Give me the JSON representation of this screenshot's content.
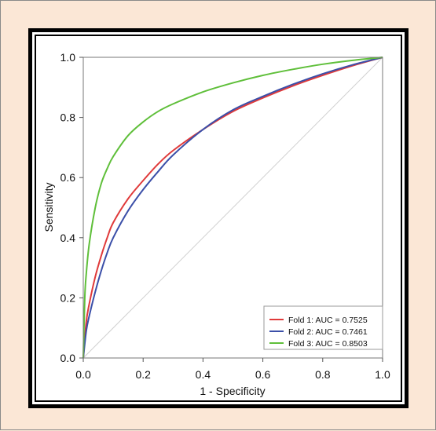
{
  "chart_data": {
    "type": "line",
    "title": "",
    "xlabel": "1 - Specificity",
    "ylabel": "Sensitivity",
    "xlim": [
      0,
      1
    ],
    "ylim": [
      0,
      1
    ],
    "x_ticks": [
      "0.0",
      "0.2",
      "0.4",
      "0.6",
      "0.8",
      "1.0"
    ],
    "y_ticks": [
      "0.0",
      "0.2",
      "0.4",
      "0.6",
      "0.8",
      "1.0"
    ],
    "grid": false,
    "legend_position": "bottom-right",
    "reference_line": {
      "x": [
        0,
        1
      ],
      "y": [
        0,
        1
      ],
      "color": "#d0d0d0"
    },
    "series": [
      {
        "name": "Fold 1: AUC = 0.7525",
        "color": "#e03a3a",
        "x": [
          0,
          0.01,
          0.02,
          0.04,
          0.06,
          0.08,
          0.1,
          0.15,
          0.2,
          0.25,
          0.3,
          0.4,
          0.5,
          0.6,
          0.7,
          0.8,
          0.9,
          1.0
        ],
        "y": [
          0,
          0.12,
          0.18,
          0.27,
          0.34,
          0.4,
          0.45,
          0.53,
          0.59,
          0.645,
          0.69,
          0.76,
          0.82,
          0.865,
          0.905,
          0.94,
          0.972,
          1.0
        ]
      },
      {
        "name": "Fold 2: AUC = 0.7461",
        "color": "#3b4fa8",
        "x": [
          0,
          0.01,
          0.02,
          0.04,
          0.06,
          0.08,
          0.1,
          0.15,
          0.2,
          0.25,
          0.3,
          0.4,
          0.5,
          0.6,
          0.7,
          0.8,
          0.9,
          1.0
        ],
        "y": [
          0,
          0.09,
          0.14,
          0.22,
          0.29,
          0.35,
          0.4,
          0.49,
          0.56,
          0.62,
          0.675,
          0.76,
          0.825,
          0.87,
          0.91,
          0.945,
          0.975,
          1.0
        ]
      },
      {
        "name": "Fold 3: AUC = 0.8503",
        "color": "#5fbf3a",
        "x": [
          0,
          0.005,
          0.01,
          0.02,
          0.04,
          0.06,
          0.08,
          0.1,
          0.15,
          0.2,
          0.25,
          0.3,
          0.4,
          0.5,
          0.6,
          0.7,
          0.8,
          0.9,
          1.0
        ],
        "y": [
          0,
          0.2,
          0.28,
          0.38,
          0.5,
          0.58,
          0.63,
          0.67,
          0.74,
          0.785,
          0.82,
          0.845,
          0.885,
          0.915,
          0.94,
          0.96,
          0.977,
          0.99,
          1.0
        ]
      }
    ]
  }
}
